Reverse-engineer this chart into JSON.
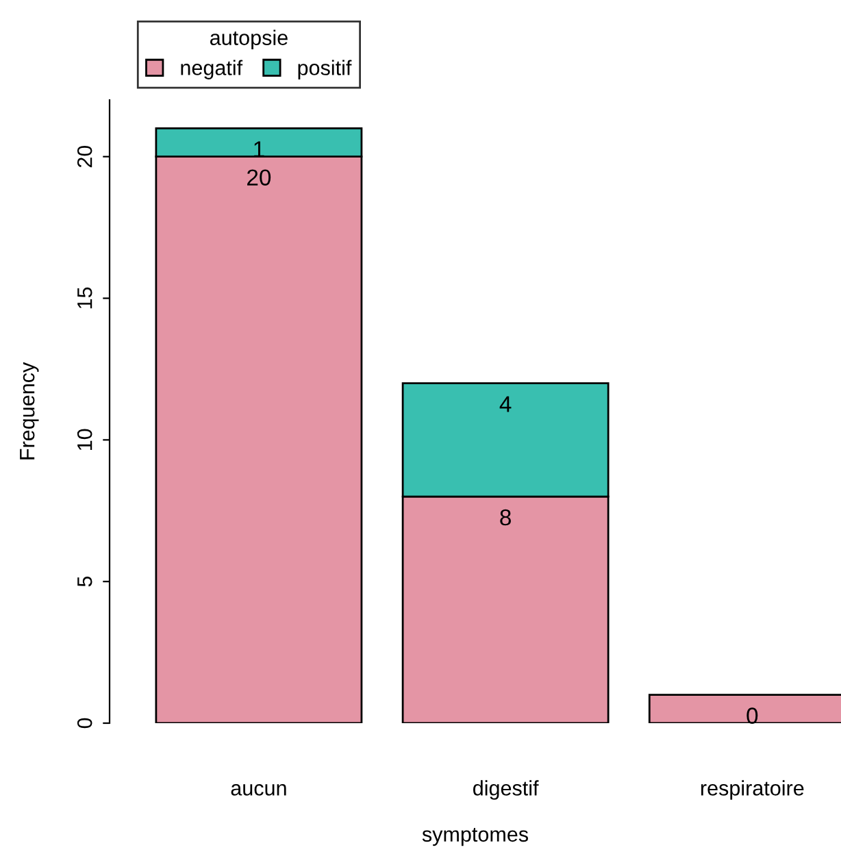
{
  "chart_data": {
    "type": "bar",
    "stacked": true,
    "categories": [
      "aucun",
      "digestif",
      "respiratoire"
    ],
    "series": [
      {
        "name": "negatif",
        "color": "#e495a5",
        "values": [
          20,
          8,
          1
        ],
        "value_labels": [
          "20",
          "8",
          null
        ]
      },
      {
        "name": "positif",
        "color": "#39bfb0",
        "values": [
          1,
          4,
          0
        ],
        "value_labels": [
          "1",
          "4",
          "0"
        ]
      }
    ],
    "xlabel": "symptomes",
    "ylabel": "Frequency",
    "legend_title": "autopsie",
    "legend": "top left",
    "ylim": [
      0,
      22
    ],
    "yticks": [
      0,
      5,
      10,
      15,
      20
    ],
    "grid": false
  }
}
